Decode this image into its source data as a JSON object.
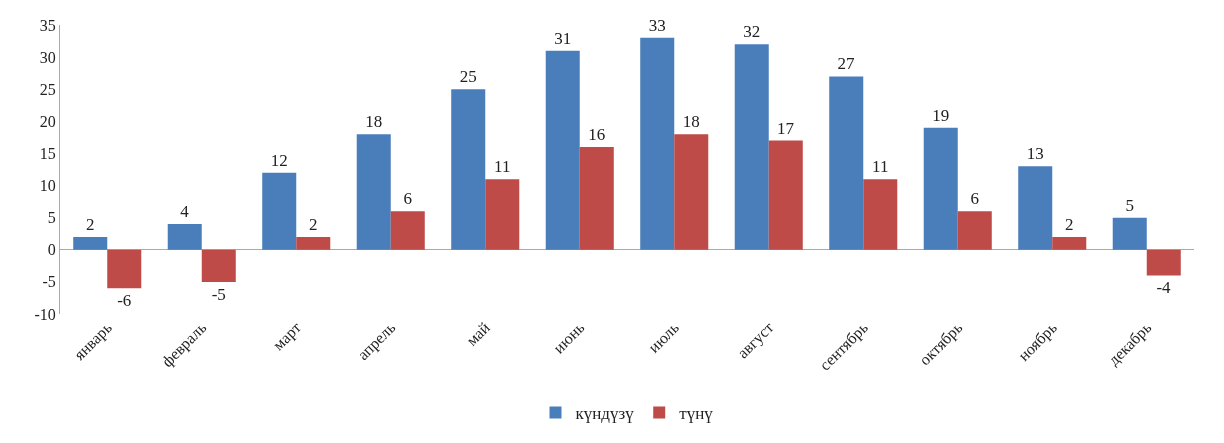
{
  "chart_data": {
    "type": "bar",
    "categories": [
      "январь",
      "февраль",
      "март",
      "апрель",
      "май",
      "июнь",
      "июль",
      "август",
      "сентябрь",
      "октябрь",
      "ноябрь",
      "декабрь"
    ],
    "series": [
      {
        "name": "күндүзү",
        "color": "#4a7ebb",
        "values": [
          2,
          4,
          12,
          18,
          25,
          31,
          33,
          32,
          27,
          19,
          13,
          5
        ]
      },
      {
        "name": "түнү",
        "color": "#be4b48",
        "values": [
          -6,
          -5,
          2,
          6,
          11,
          16,
          18,
          17,
          11,
          6,
          2,
          -4
        ]
      }
    ],
    "ylim": [
      -10,
      35
    ],
    "yticks": [
      -10,
      -5,
      0,
      5,
      10,
      15,
      20,
      25,
      30,
      35
    ],
    "legend": "bottom",
    "data_labels": true
  }
}
